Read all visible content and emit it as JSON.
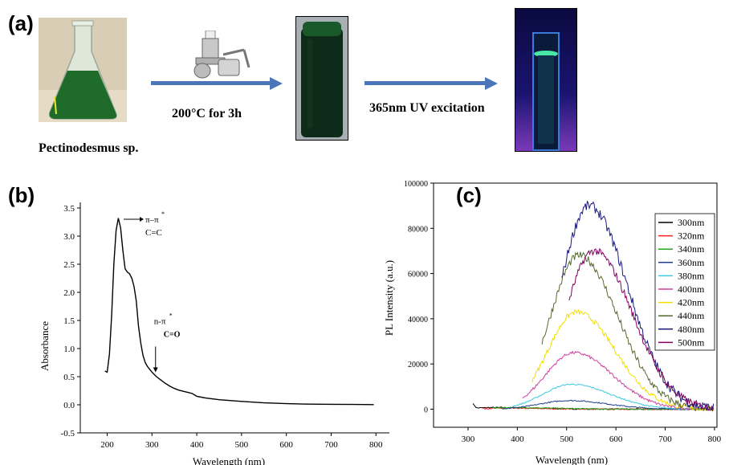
{
  "panel_a": {
    "label": "(a)",
    "step1": "200°C for 3h",
    "step2": "365nm UV excitation",
    "source_caption": "Pectinodesmus sp."
  },
  "panel_b": {
    "label": "(b)"
  },
  "panel_c": {
    "label": "(c)"
  },
  "chart_data": [
    {
      "type": "line",
      "xlabel": "Wavelength (nm)",
      "ylabel": "Absorbance",
      "xlim": [
        140,
        830
      ],
      "ylim": [
        -0.5,
        3.6
      ],
      "xticks": [
        200,
        300,
        400,
        500,
        600,
        700,
        800
      ],
      "yticks": [
        -0.5,
        0.0,
        0.5,
        1.0,
        1.5,
        2.0,
        2.5,
        3.0,
        3.5
      ],
      "grid": false,
      "annotations": [
        {
          "text": "π–π",
          "sup": "*",
          "sub": "C=C",
          "x": 226,
          "y": 3.3
        },
        {
          "text": "n-π",
          "sup": "*",
          "sub": "C=O",
          "x": 308,
          "y": 0.55
        }
      ],
      "series": [
        {
          "color": "#000000",
          "x": [
            195,
            200,
            205,
            210,
            215,
            220,
            225,
            230,
            235,
            240,
            245,
            250,
            255,
            260,
            265,
            270,
            275,
            280,
            285,
            290,
            295,
            300,
            310,
            320,
            330,
            340,
            350,
            360,
            370,
            380,
            390,
            400,
            420,
            450,
            500,
            550,
            600,
            650,
            700,
            750,
            795
          ],
          "y": [
            0.6,
            0.58,
            0.9,
            1.6,
            2.5,
            3.1,
            3.32,
            3.15,
            2.75,
            2.42,
            2.36,
            2.33,
            2.25,
            2.1,
            1.85,
            1.4,
            1.1,
            0.88,
            0.75,
            0.68,
            0.63,
            0.58,
            0.5,
            0.44,
            0.38,
            0.33,
            0.29,
            0.26,
            0.24,
            0.22,
            0.2,
            0.15,
            0.12,
            0.09,
            0.06,
            0.035,
            0.02,
            0.012,
            0.008,
            0.005,
            0.003
          ]
        }
      ]
    },
    {
      "type": "line",
      "xlabel": "Wavelength (nm)",
      "ylabel": "PL Intensity (a.u.)",
      "xlim": [
        230,
        805
      ],
      "ylim": [
        -8000,
        100000
      ],
      "xticks": [
        300,
        400,
        500,
        600,
        700,
        800
      ],
      "yticks": [
        0,
        20000,
        40000,
        60000,
        80000,
        100000
      ],
      "legend_position": "top-right",
      "grid": false,
      "series": [
        {
          "name": "300nm",
          "color": "#000000",
          "peak": 700,
          "center": 360,
          "start": 310
        },
        {
          "name": "320nm",
          "color": "#ff2020",
          "peak": 400,
          "center": 380,
          "start": 330
        },
        {
          "name": "340nm",
          "color": "#22aa22",
          "peak": 700,
          "center": 400,
          "start": 350
        },
        {
          "name": "360nm",
          "color": "#1f3f8f",
          "peak": 3800,
          "center": 505,
          "start": 370
        },
        {
          "name": "380nm",
          "color": "#40c8e0",
          "peak": 11000,
          "center": 510,
          "start": 390
        },
        {
          "name": "400nm",
          "color": "#d040a0",
          "peak": 25000,
          "center": 515,
          "start": 410
        },
        {
          "name": "420nm",
          "color": "#f0e000",
          "peak": 43000,
          "center": 520,
          "start": 430
        },
        {
          "name": "440nm",
          "color": "#556b2f",
          "peak": 68000,
          "center": 525,
          "start": 450
        },
        {
          "name": "480nm",
          "color": "#1a1a80",
          "peak": 90000,
          "center": 545,
          "start": 490
        },
        {
          "name": "500nm",
          "color": "#800060",
          "peak": 70000,
          "center": 555,
          "start": 505
        }
      ]
    }
  ]
}
